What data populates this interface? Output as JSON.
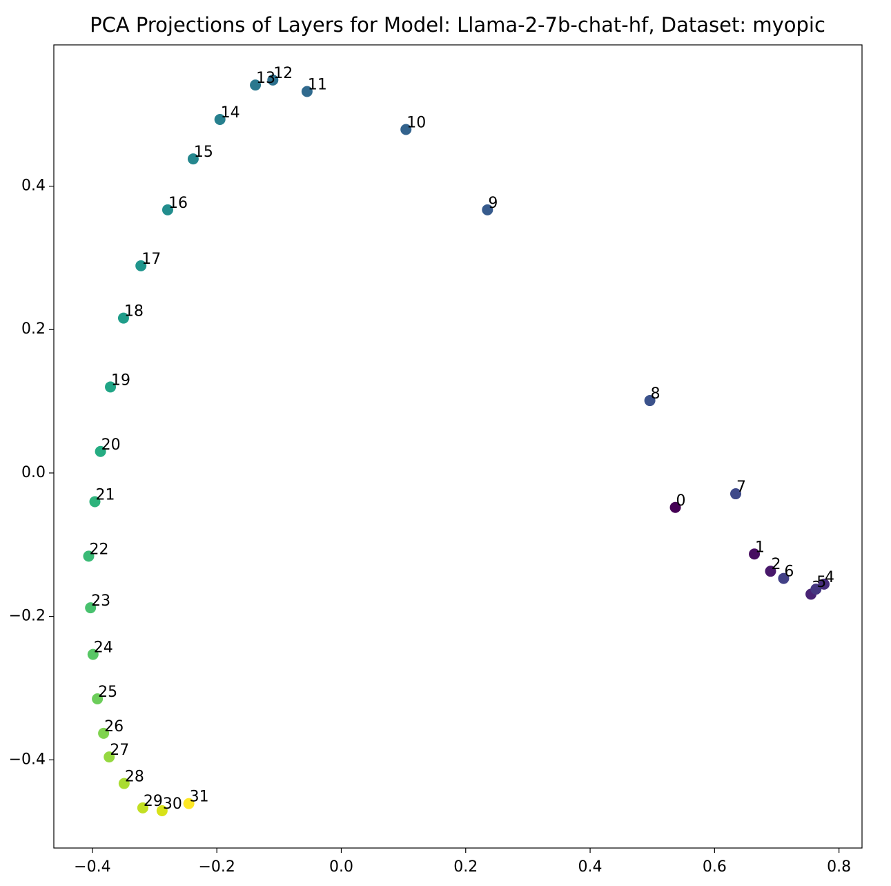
{
  "chart_data": {
    "type": "scatter",
    "title": "PCA Projections of Layers for Model: Llama-2-7b-chat-hf, Dataset: myopic",
    "x": [
      0.537,
      0.664,
      0.69,
      0.755,
      0.776,
      0.763,
      0.711,
      0.634,
      0.496,
      0.235,
      0.104,
      -0.055,
      -0.11,
      -0.138,
      -0.195,
      -0.238,
      -0.279,
      -0.322,
      -0.35,
      -0.371,
      -0.387,
      -0.396,
      -0.406,
      -0.403,
      -0.399,
      -0.392,
      -0.382,
      -0.373,
      -0.349,
      -0.319,
      -0.288,
      -0.245
    ],
    "values": [
      -0.048,
      -0.113,
      -0.137,
      -0.169,
      -0.155,
      -0.162,
      -0.147,
      -0.029,
      0.101,
      0.367,
      0.479,
      0.532,
      0.548,
      0.541,
      0.493,
      0.438,
      0.367,
      0.289,
      0.216,
      0.12,
      0.03,
      -0.04,
      -0.116,
      -0.188,
      -0.253,
      -0.315,
      -0.363,
      -0.396,
      -0.433,
      -0.467,
      -0.471,
      -0.461
    ],
    "point_labels": [
      "0",
      "1",
      "2",
      "3",
      "4",
      "5",
      "6",
      "7",
      "8",
      "9",
      "10",
      "11",
      "12",
      "13",
      "14",
      "15",
      "16",
      "17",
      "18",
      "19",
      "20",
      "21",
      "22",
      "23",
      "24",
      "25",
      "26",
      "27",
      "28",
      "29",
      "30",
      "31"
    ],
    "colors": [
      "#440154",
      "#470d60",
      "#48186a",
      "#482374",
      "#472d7b",
      "#453781",
      "#424086",
      "#3e4989",
      "#3b528b",
      "#375b8d",
      "#33638d",
      "#306a8e",
      "#2d718e",
      "#2a788e",
      "#27808e",
      "#25878e",
      "#228d8d",
      "#20958c",
      "#1f9d8a",
      "#21a586",
      "#25ac82",
      "#2eb37c",
      "#3aba76",
      "#48c16e",
      "#58c765",
      "#6ccd5a",
      "#7fd34e",
      "#95d840",
      "#aadc32",
      "#c2df23",
      "#d8e219",
      "#fde725"
    ],
    "xlim": [
      -0.462,
      0.837
    ],
    "ylim": [
      -0.523,
      0.597
    ],
    "xticks": [
      {
        "value": -0.4,
        "label": "−0.4"
      },
      {
        "value": -0.2,
        "label": "−0.2"
      },
      {
        "value": 0.0,
        "label": "0.0"
      },
      0.2,
      0.4,
      0.6,
      0.8
    ],
    "yticks": [
      {
        "value": -0.4,
        "label": "−0.4"
      },
      {
        "value": -0.2,
        "label": "−0.2"
      },
      {
        "value": 0.0,
        "label": "0.0"
      },
      0.2,
      0.4
    ],
    "grid": false
  }
}
